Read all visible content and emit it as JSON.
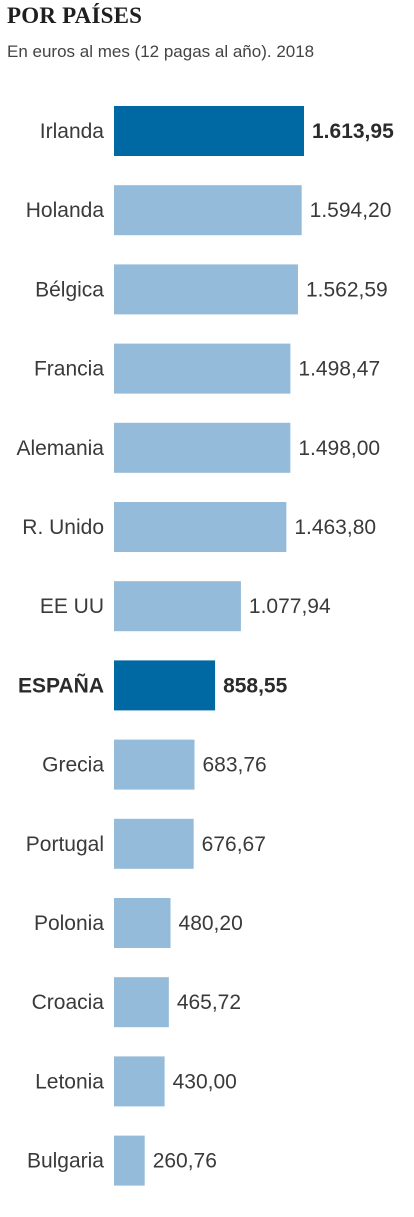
{
  "header": {
    "title": "POR PAÍSES",
    "subtitle": "En euros al mes (12 pagas al año). 2018"
  },
  "colors": {
    "bar": "#94bbd9",
    "highlight": "#0068a3",
    "text": "#3a3a3a"
  },
  "chart_data": {
    "type": "bar",
    "orientation": "horizontal",
    "title": "POR PAÍSES",
    "subtitle": "En euros al mes (12 pagas al año). 2018",
    "xlabel": "",
    "ylabel": "",
    "grid": false,
    "categories": [
      "Irlanda",
      "Holanda",
      "Bélgica",
      "Francia",
      "Alemania",
      "R. Unido",
      "EE UU",
      "ESPAÑA",
      "Grecia",
      "Portugal",
      "Polonia",
      "Croacia",
      "Letonia",
      "Bulgaria"
    ],
    "values": [
      1613.95,
      1594.2,
      1562.59,
      1498.47,
      1498.0,
      1463.8,
      1077.94,
      858.55,
      683.76,
      676.67,
      480.2,
      465.72,
      430.0,
      260.76
    ],
    "value_labels": [
      "1.613,95",
      "1.594,20",
      "1.562,59",
      "1.498,47",
      "1.498,00",
      "1.463,80",
      "1.077,94",
      "858,55",
      "683,76",
      "676,67",
      "480,20",
      "465,72",
      "430,00",
      "260,76"
    ],
    "highlighted": [
      "Irlanda",
      "ESPAÑA"
    ],
    "bold_category_labels": [
      "ESPAÑA"
    ]
  }
}
